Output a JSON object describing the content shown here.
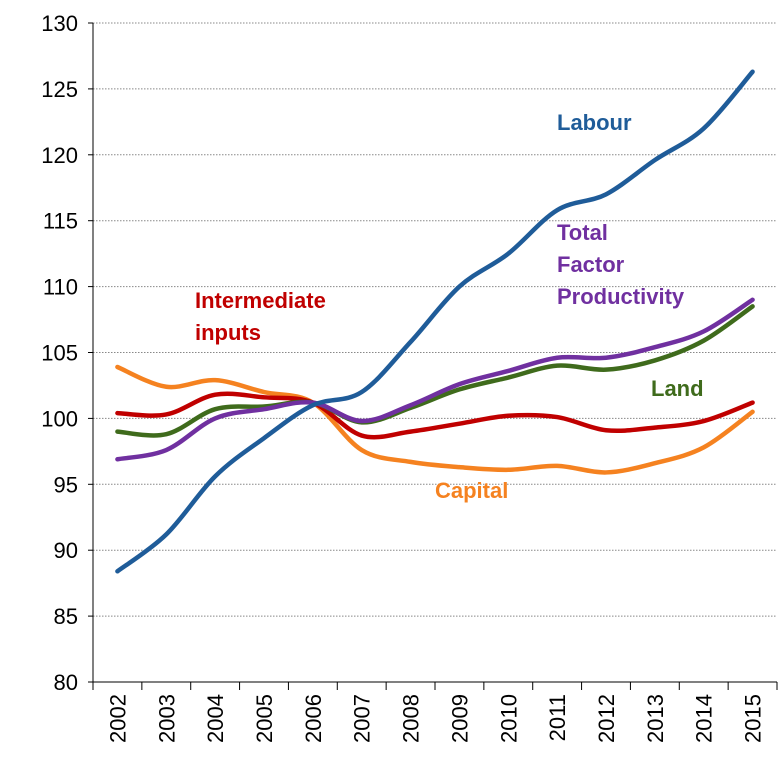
{
  "chart_data": {
    "type": "line",
    "categories": [
      "2002",
      "2003",
      "2004",
      "2005",
      "2006",
      "2007",
      "2008",
      "2009",
      "2010",
      "2011",
      "2012",
      "2013",
      "2014",
      "2015"
    ],
    "series": [
      {
        "name": "Labour",
        "color": "#1f5c99",
        "values": [
          88.4,
          91.2,
          95.6,
          98.5,
          101.0,
          102.0,
          105.8,
          110.0,
          112.5,
          115.8,
          117.0,
          119.6,
          122.0,
          126.3
        ]
      },
      {
        "name": "Total Factor Productivity",
        "color": "#7030a0",
        "values": [
          96.9,
          97.6,
          100.0,
          100.7,
          101.2,
          99.8,
          101.0,
          102.6,
          103.6,
          104.6,
          104.6,
          105.4,
          106.6,
          109.0
        ]
      },
      {
        "name": "Land",
        "color": "#3f6b1c",
        "values": [
          99.0,
          98.8,
          100.7,
          100.9,
          101.2,
          99.7,
          100.8,
          102.2,
          103.1,
          104.0,
          103.7,
          104.4,
          105.9,
          108.5
        ]
      },
      {
        "name": "Intermediate inputs",
        "color": "#c00000",
        "values": [
          100.4,
          100.3,
          101.8,
          101.6,
          101.2,
          98.7,
          99.0,
          99.6,
          100.2,
          100.1,
          99.1,
          99.3,
          99.8,
          101.2
        ]
      },
      {
        "name": "Capital",
        "color": "#f58220",
        "values": [
          103.9,
          102.4,
          102.9,
          102.0,
          101.2,
          97.6,
          96.7,
          96.3,
          96.1,
          96.4,
          95.9,
          96.6,
          97.8,
          100.5
        ]
      }
    ],
    "ylim": [
      80,
      130
    ],
    "yticks": [
      80,
      85,
      90,
      95,
      100,
      105,
      110,
      115,
      120,
      125,
      130
    ],
    "grid": true
  }
}
